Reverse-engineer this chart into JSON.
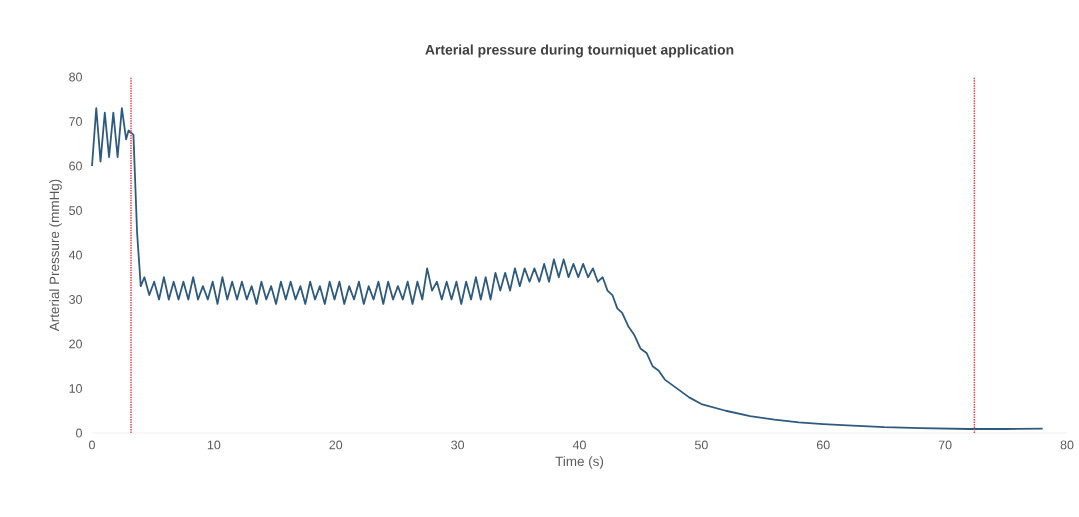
{
  "chart_data": {
    "type": "line",
    "title": "Arterial pressure during tourniquet application",
    "xlabel": "Time (s)",
    "ylabel": "Arterial Pressure (mmHg)",
    "xlim": [
      0,
      80
    ],
    "xticks": [
      0,
      10,
      20,
      30,
      40,
      50,
      60,
      70,
      80
    ],
    "ylim": [
      0,
      80
    ],
    "yticks": [
      0,
      10,
      20,
      30,
      40,
      50,
      60,
      70,
      80
    ],
    "marker": "none",
    "line_style": "solid",
    "x": [
      0,
      0.35,
      0.7,
      1.05,
      1.4,
      1.75,
      2.1,
      2.45,
      2.8,
      3.0,
      3.4,
      3.7,
      4.0,
      4.3,
      4.7,
      5.1,
      5.5,
      5.9,
      6.3,
      6.7,
      7.1,
      7.5,
      7.9,
      8.3,
      8.7,
      9.1,
      9.5,
      9.9,
      10.3,
      10.7,
      11.1,
      11.5,
      11.9,
      12.3,
      12.7,
      13.1,
      13.5,
      13.9,
      14.3,
      14.7,
      15.1,
      15.5,
      15.9,
      16.3,
      16.7,
      17.1,
      17.5,
      17.9,
      18.3,
      18.7,
      19.1,
      19.5,
      19.9,
      20.3,
      20.7,
      21.1,
      21.5,
      21.9,
      22.3,
      22.7,
      23.1,
      23.5,
      23.9,
      24.3,
      24.7,
      25.1,
      25.5,
      25.9,
      26.3,
      26.7,
      27.1,
      27.5,
      27.9,
      28.3,
      28.7,
      29.1,
      29.5,
      29.9,
      30.3,
      30.7,
      31.1,
      31.5,
      31.9,
      32.3,
      32.7,
      33.1,
      33.5,
      33.9,
      34.3,
      34.7,
      35.1,
      35.5,
      35.9,
      36.3,
      36.7,
      37.1,
      37.5,
      37.9,
      38.3,
      38.7,
      39.1,
      39.5,
      39.9,
      40.3,
      40.7,
      41.1,
      41.5,
      41.9,
      42.3,
      42.7,
      43.1,
      43.5,
      44,
      44.5,
      45,
      45.5,
      46,
      46.5,
      47,
      47.5,
      48,
      49,
      50,
      52,
      54,
      56,
      58,
      60,
      62,
      65,
      68,
      72,
      75,
      78
    ],
    "series": [
      {
        "color": "#2e5a7e",
        "values": [
          60,
          73,
          61,
          72,
          62,
          72,
          62,
          73,
          66,
          68,
          67,
          45,
          33,
          35,
          31,
          34,
          30,
          35,
          30,
          34,
          30,
          34,
          30,
          35,
          30,
          33,
          30,
          34,
          29,
          35,
          30,
          34,
          30,
          34,
          30,
          33,
          29,
          34,
          30,
          33,
          29,
          34,
          30,
          34,
          30,
          33,
          29,
          34,
          30,
          33,
          29,
          34,
          30,
          34,
          29,
          33,
          30,
          34,
          29,
          33,
          30,
          34,
          29,
          34,
          30,
          33,
          30,
          34,
          29,
          34,
          30,
          37,
          32,
          34,
          30,
          34,
          30,
          34,
          29,
          34,
          30,
          35,
          30,
          35,
          30,
          36,
          32,
          36,
          32,
          37,
          33,
          37,
          34,
          37,
          34,
          38,
          34,
          39,
          35,
          39,
          35,
          38,
          35,
          38,
          35,
          37,
          34,
          35,
          32,
          31,
          28,
          27,
          24,
          22,
          19,
          18,
          15,
          14,
          12,
          11,
          10,
          8,
          6.5,
          5,
          3.8,
          3,
          2.4,
          2,
          1.7,
          1.3,
          1.1,
          0.9,
          0.9,
          1
        ]
      }
    ],
    "ref_lines": [
      {
        "axis": "x",
        "value": 3.2,
        "color": "#e04848",
        "line_style": "dotted"
      },
      {
        "axis": "x",
        "value": 72.4,
        "color": "#e04848",
        "line_style": "dotted"
      }
    ]
  }
}
